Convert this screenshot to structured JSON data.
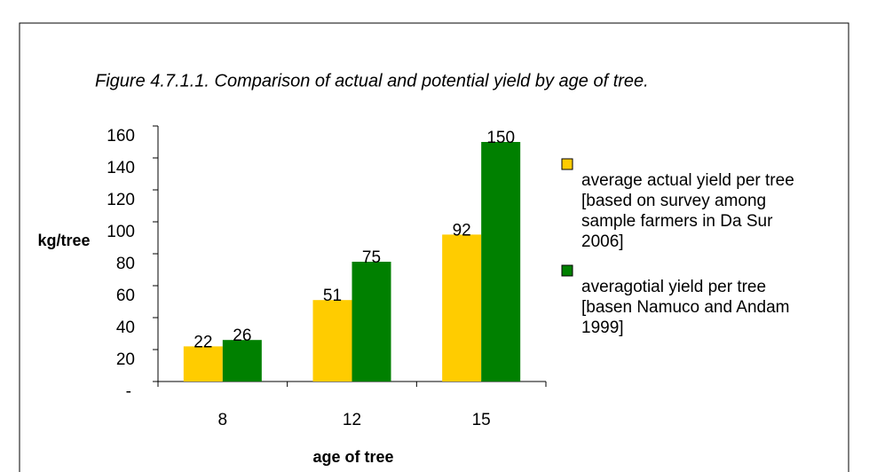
{
  "chart_data": {
    "type": "bar",
    "title": "Figure 4.7.1.1. Comparison of actual and potential yield by age of tree.",
    "x_label": "age of tree",
    "y_label": "kg/tree",
    "categories": [
      "8",
      "12",
      "15"
    ],
    "series": [
      {
        "name": "average actual yield per tree [based on survey among sample farmers in Da Sur 2006]",
        "color": "#ffcc00",
        "values": [
          22,
          51,
          92
        ]
      },
      {
        "name": "averagotial yield per tree [basen Namuco and Andam 1999]",
        "color": "#008000",
        "values": [
          26,
          75,
          150
        ]
      }
    ],
    "ylim": [
      0,
      160
    ],
    "yticks": [
      {
        "value": 0,
        "label": "-"
      },
      20,
      40,
      60,
      80,
      100,
      120,
      140,
      160
    ],
    "legend": "right"
  }
}
